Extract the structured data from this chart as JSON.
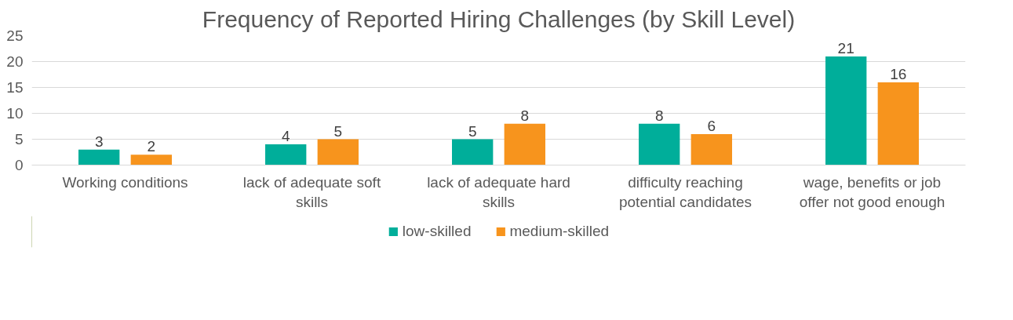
{
  "chart_data": {
    "type": "bar",
    "title": "Frequency of Reported Hiring Challenges (by Skill Level)",
    "categories": [
      "Working conditions",
      "lack of adequate soft skills",
      "lack of adequate hard skills",
      "difficulty reaching potential candidates",
      "wage, benefits or job offer not good enough"
    ],
    "series": [
      {
        "name": "low-skilled",
        "color": "#00ae9a",
        "values": [
          3,
          4,
          5,
          8,
          21
        ]
      },
      {
        "name": "medium-skilled",
        "color": "#f7941d",
        "values": [
          2,
          5,
          8,
          6,
          16
        ]
      }
    ],
    "ylim": [
      0,
      25
    ],
    "yticks": [
      0,
      5,
      10,
      15,
      20,
      25
    ],
    "grid": "y",
    "legend": "bottom",
    "data_labels": true
  }
}
